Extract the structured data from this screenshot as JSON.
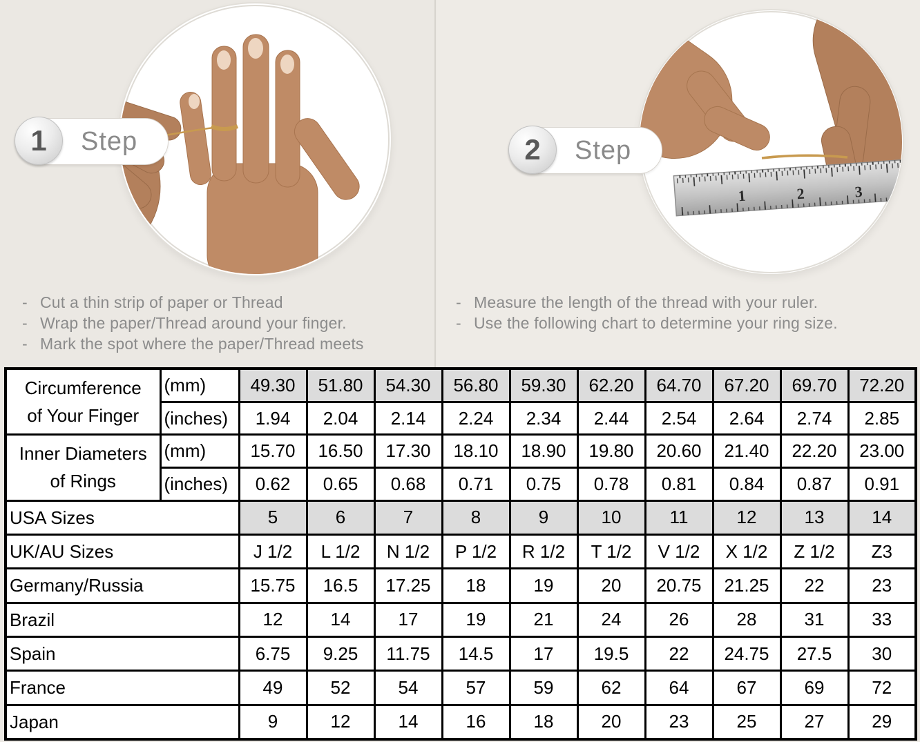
{
  "bullet": "-",
  "colors": {
    "page_background": "#ece9e4",
    "table_shaded_cell": "#dcdcdc",
    "table_border": "#000000",
    "instruction_text": "#8b8b8b",
    "step_text": "#8a8a8a",
    "thread_gold": "#c89a4f",
    "skin_tone": "#bf8b66"
  },
  "steps": [
    {
      "number": "1",
      "label": "Step",
      "image_name": "hand-with-thread-wrapped-around-finger-photo",
      "instructions": [
        "Cut a thin strip of paper or Thread",
        "Wrap the paper/Thread around your finger.",
        "Mark the spot where the paper/Thread meets"
      ]
    },
    {
      "number": "2",
      "label": "Step",
      "image_name": "hands-measuring-thread-with-ruler-photo",
      "ruler_marks": [
        "1",
        "2",
        "3"
      ],
      "instructions": [
        "Measure the length of the thread with your ruler.",
        "Use the following chart to determine your ring size."
      ]
    }
  ],
  "size_chart": {
    "rows": [
      {
        "label": "Circumference\nof Your Finger",
        "label_rowspan": 2,
        "label_align": "center",
        "unit": "(mm)",
        "shaded": true,
        "values": [
          "49.30",
          "51.80",
          "54.30",
          "56.80",
          "59.30",
          "62.20",
          "64.70",
          "67.20",
          "69.70",
          "72.20"
        ]
      },
      {
        "unit": "(inches)",
        "values": [
          "1.94",
          "2.04",
          "2.14",
          "2.24",
          "2.34",
          "2.44",
          "2.54",
          "2.64",
          "2.74",
          "2.85"
        ]
      },
      {
        "label": "Inner Diameters\nof Rings",
        "label_rowspan": 2,
        "label_align": "center",
        "unit": "(mm)",
        "values": [
          "15.70",
          "16.50",
          "17.30",
          "18.10",
          "18.90",
          "19.80",
          "20.60",
          "21.40",
          "22.20",
          "23.00"
        ]
      },
      {
        "unit": "(inches)",
        "values": [
          "0.62",
          "0.65",
          "0.68",
          "0.71",
          "0.75",
          "0.78",
          "0.81",
          "0.84",
          "0.87",
          "0.91"
        ]
      },
      {
        "label": "USA Sizes",
        "label_colspan": 2,
        "label_align": "left",
        "shaded": true,
        "values": [
          "5",
          "6",
          "7",
          "8",
          "9",
          "10",
          "11",
          "12",
          "13",
          "14"
        ]
      },
      {
        "label": "UK/AU Sizes",
        "label_colspan": 2,
        "label_align": "left",
        "values": [
          "J 1/2",
          "L 1/2",
          "N 1/2",
          "P 1/2",
          "R 1/2",
          "T 1/2",
          "V 1/2",
          "X 1/2",
          "Z 1/2",
          "Z3"
        ]
      },
      {
        "label": "Germany/Russia",
        "label_colspan": 2,
        "label_align": "left",
        "values": [
          "15.75",
          "16.5",
          "17.25",
          "18",
          "19",
          "20",
          "20.75",
          "21.25",
          "22",
          "23"
        ]
      },
      {
        "label": "Brazil",
        "label_colspan": 2,
        "label_align": "left",
        "values": [
          "12",
          "14",
          "17",
          "19",
          "21",
          "24",
          "26",
          "28",
          "31",
          "33"
        ]
      },
      {
        "label": "Spain",
        "label_colspan": 2,
        "label_align": "left",
        "values": [
          "6.75",
          "9.25",
          "11.75",
          "14.5",
          "17",
          "19.5",
          "22",
          "24.75",
          "27.5",
          "30"
        ]
      },
      {
        "label": "France",
        "label_colspan": 2,
        "label_align": "left",
        "values": [
          "49",
          "52",
          "54",
          "57",
          "59",
          "62",
          "64",
          "67",
          "69",
          "72"
        ]
      },
      {
        "label": "Japan",
        "label_colspan": 2,
        "label_align": "left",
        "values": [
          "9",
          "12",
          "14",
          "16",
          "18",
          "20",
          "23",
          "25",
          "27",
          "29"
        ]
      }
    ]
  }
}
